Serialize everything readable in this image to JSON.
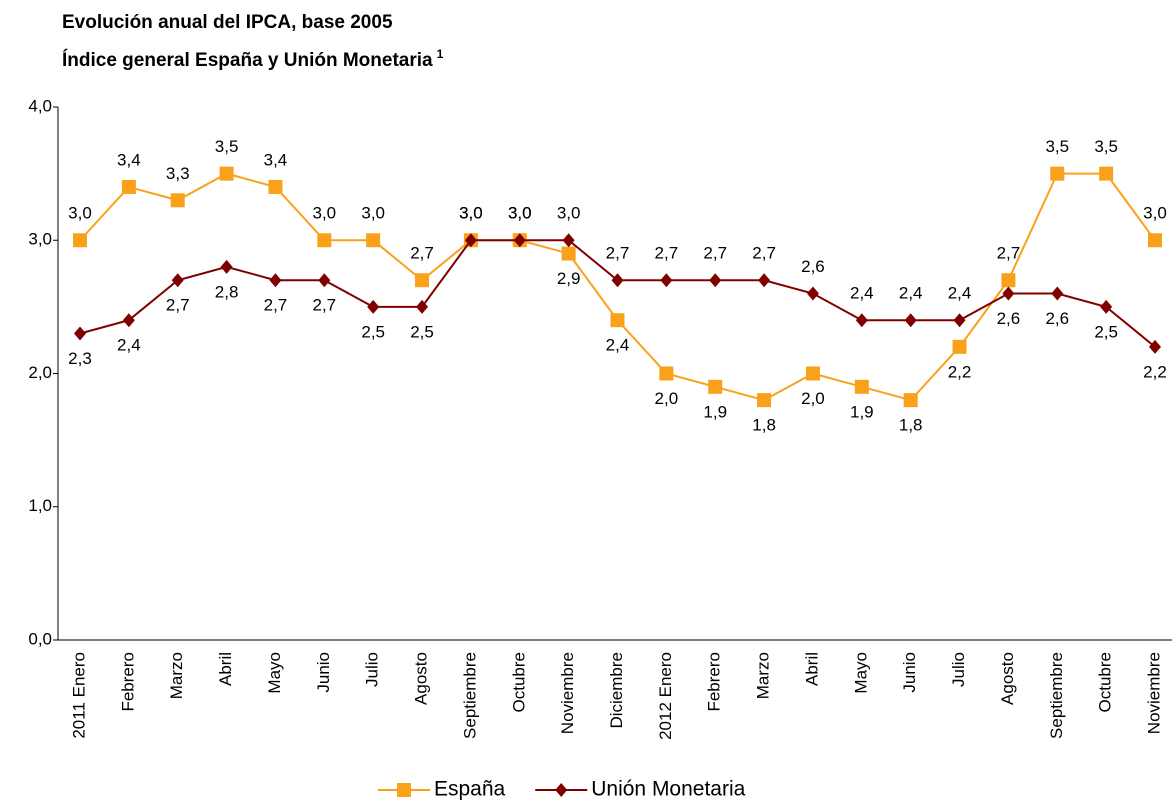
{
  "chart_data": {
    "type": "line",
    "title": "Evolución anual del IPCA, base 2005",
    "subtitle": "Índice general España y Unión Monetaria",
    "subtitle_mark": "1",
    "categories": [
      "2011 Enero",
      "Febrero",
      "Marzo",
      "Abril",
      "Mayo",
      "Junio",
      "Julio",
      "Agosto",
      "Septiembre",
      "Octubre",
      "Noviembre",
      "Diciembre",
      "2012 Enero",
      "Febrero",
      "Marzo",
      "Abril",
      "Mayo",
      "Junio",
      "Julio",
      "Agosto",
      "Septiembre",
      "Octubre",
      "Noviembre"
    ],
    "series": [
      {
        "name": "España",
        "color": "#f9a11b",
        "marker": "square",
        "values": [
          3.0,
          3.4,
          3.3,
          3.5,
          3.4,
          3.0,
          3.0,
          2.7,
          3.0,
          3.0,
          2.9,
          2.4,
          2.0,
          1.9,
          1.8,
          2.0,
          1.9,
          1.8,
          2.2,
          2.7,
          3.5,
          3.5,
          3.0
        ],
        "value_labels": [
          "3,0",
          "3,4",
          "3,3",
          "3,5",
          "3,4",
          "3,0",
          "3,0",
          "2,7",
          "3,0",
          "3,0",
          "2,9",
          "2,4",
          "2,0",
          "1,9",
          "1,8",
          "2,0",
          "1,9",
          "1,8",
          "2,2",
          "2,7",
          "3,5",
          "3,5",
          "3,0"
        ]
      },
      {
        "name": "Unión Monetaria",
        "color": "#800000",
        "marker": "diamond",
        "values": [
          2.3,
          2.4,
          2.7,
          2.8,
          2.7,
          2.7,
          2.5,
          2.5,
          3.0,
          3.0,
          3.0,
          2.7,
          2.7,
          2.7,
          2.7,
          2.6,
          2.4,
          2.4,
          2.4,
          2.6,
          2.6,
          2.5,
          2.2
        ],
        "value_labels": [
          "2,3",
          "2,4",
          "2,7",
          "2,8",
          "2,7",
          "2,7",
          "2,5",
          "2,5",
          "3,0",
          "3,0",
          "3,0",
          "2,7",
          "2,7",
          "2,7",
          "2,7",
          "2,6",
          "2,4",
          "2,4",
          "2,4",
          "2,6",
          "2,6",
          "2,5",
          "2,2"
        ]
      }
    ],
    "ylim": [
      0,
      4
    ],
    "yticks": [
      {
        "value": 0,
        "label": "0,0"
      },
      {
        "value": 1,
        "label": "1,0"
      },
      {
        "value": 2,
        "label": "2,0"
      },
      {
        "value": 3,
        "label": "3,0"
      },
      {
        "value": 4,
        "label": "4,0"
      }
    ],
    "grid": false,
    "legend": "bottom"
  }
}
